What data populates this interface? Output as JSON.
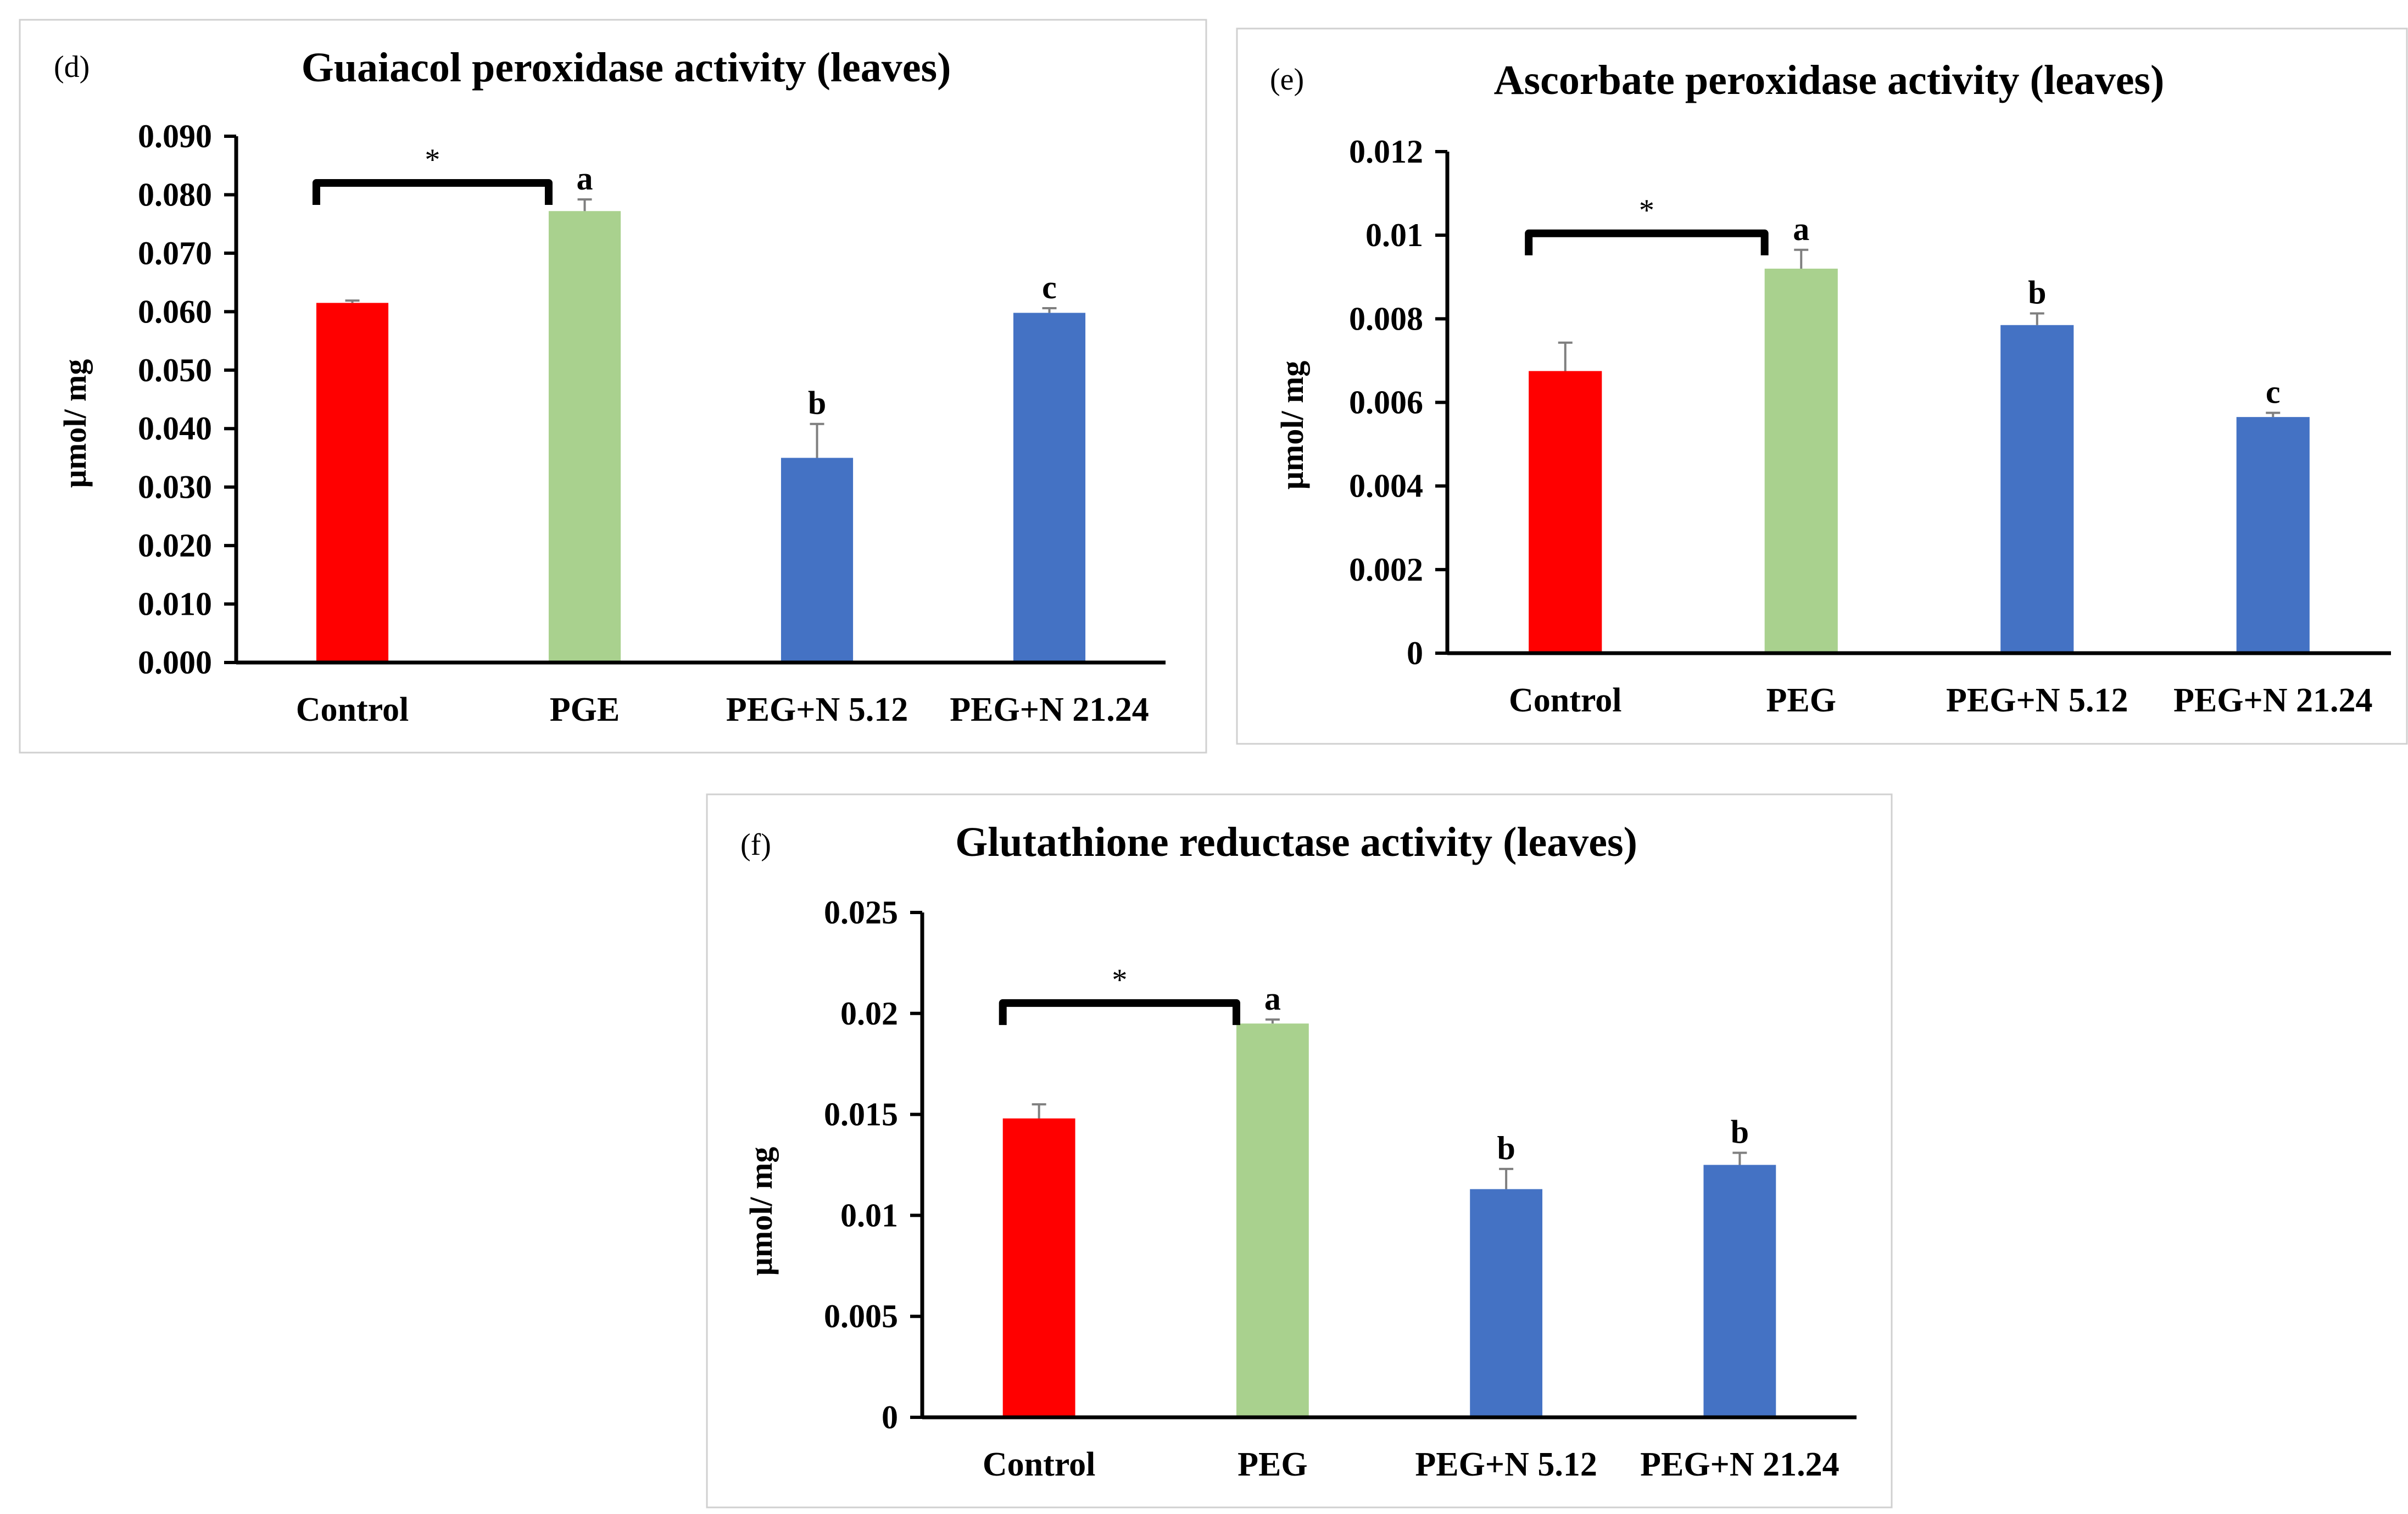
{
  "colors": {
    "control": "#ff0000",
    "peg": "#a9d18e",
    "nano": "#4472c4"
  },
  "chart_data": [
    {
      "type": "bar",
      "panel": "(d)",
      "title": "Guaiacol peroxidase activity (leaves)",
      "ylabel": "µmol/ mg",
      "xlabel": "",
      "categories": [
        "Control",
        "PGE",
        "PEG+N 5.12",
        "PEG+N 21.24"
      ],
      "values": [
        0.0615,
        0.0772,
        0.035,
        0.0598
      ],
      "errors": [
        0.0004,
        0.002,
        0.0058,
        0.0008
      ],
      "letters": [
        "",
        "a",
        "b",
        "c"
      ],
      "bar_colors": [
        "#ff0000",
        "#a9d18e",
        "#4472c4",
        "#4472c4"
      ],
      "ylim": [
        0,
        0.09
      ],
      "yticks": [
        "0.000",
        "0.010",
        "0.020",
        "0.030",
        "0.040",
        "0.050",
        "0.060",
        "0.070",
        "0.080",
        "0.090"
      ],
      "significance": {
        "label": "*",
        "from": "Control",
        "to": "PGE"
      },
      "legend": "none",
      "grid": false
    },
    {
      "type": "bar",
      "panel": "(e)",
      "title": "Ascorbate peroxidase activity (leaves)",
      "ylabel": "µmol/ mg",
      "xlabel": "",
      "categories": [
        "Control",
        "PEG",
        "PEG+N 5.12",
        "PEG+N 21.24"
      ],
      "values": [
        0.00675,
        0.0092,
        0.00785,
        0.00565
      ],
      "errors": [
        0.00068,
        0.00045,
        0.00028,
        0.0001
      ],
      "letters": [
        "",
        "a",
        "b",
        "c"
      ],
      "bar_colors": [
        "#ff0000",
        "#a9d18e",
        "#4472c4",
        "#4472c4"
      ],
      "ylim": [
        0,
        0.012
      ],
      "yticks": [
        "0",
        "0.002",
        "0.004",
        "0.006",
        "0.008",
        "0.01",
        "0.012"
      ],
      "significance": {
        "label": "*",
        "from": "Control",
        "to": "PEG"
      },
      "legend": "none",
      "grid": false
    },
    {
      "type": "bar",
      "panel": "(f)",
      "title": "Glutathione reductase activity (leaves)",
      "ylabel": "µmol/ mg",
      "xlabel": "",
      "categories": [
        "Control",
        "PEG",
        "PEG+N 5.12",
        "PEG+N 21.24"
      ],
      "values": [
        0.0148,
        0.0195,
        0.0113,
        0.0125
      ],
      "errors": [
        0.0007,
        0.0002,
        0.001,
        0.0006
      ],
      "letters": [
        "",
        "a",
        "b",
        "b"
      ],
      "bar_colors": [
        "#ff0000",
        "#a9d18e",
        "#4472c4",
        "#4472c4"
      ],
      "ylim": [
        0,
        0.025
      ],
      "yticks": [
        "0",
        "0.005",
        "0.01",
        "0.015",
        "0.02",
        "0.025"
      ],
      "significance": {
        "label": "*",
        "from": "Control",
        "to": "PEG"
      },
      "legend": "none",
      "grid": false
    }
  ]
}
